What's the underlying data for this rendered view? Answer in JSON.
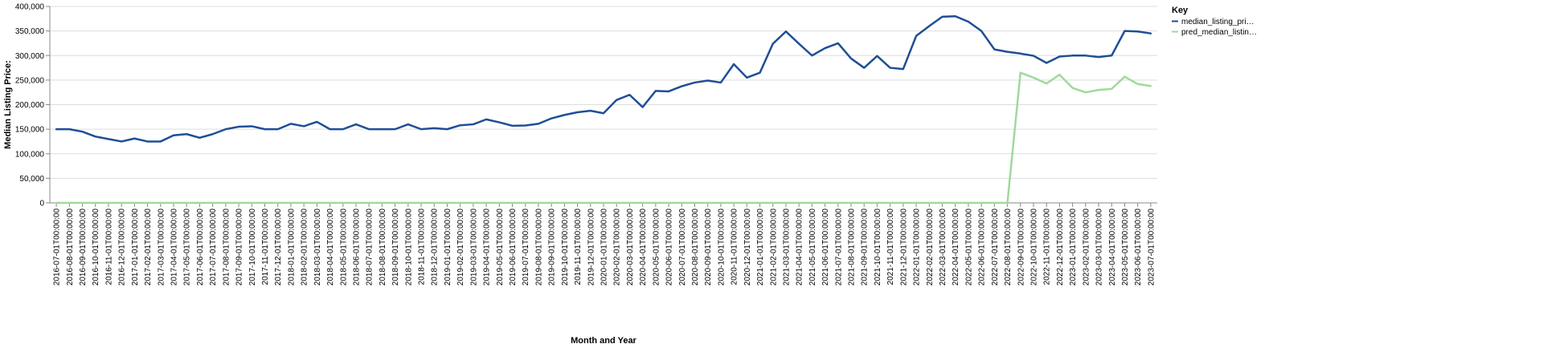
{
  "chart_data": {
    "type": "line",
    "xlabel": "Month and Year",
    "ylabel": "Median Listing Price:",
    "ylim": [
      0,
      400000
    ],
    "y_ticks": [
      0,
      50000,
      100000,
      150000,
      200000,
      250000,
      300000,
      350000,
      400000
    ],
    "y_tick_labels": [
      "0",
      "50,000",
      "100,000",
      "150,000",
      "200,000",
      "250,000",
      "300,000",
      "350,000",
      "400,000"
    ],
    "grid": true,
    "legend": {
      "title": "Key",
      "placement": "right",
      "entries": [
        "median_listing_pri…",
        "pred_median_listin…"
      ]
    },
    "categories": [
      "2016-07-01T00:00:00",
      "2016-08-01T00:00:00",
      "2016-09-01T00:00:00",
      "2016-10-01T00:00:00",
      "2016-11-01T00:00:00",
      "2016-12-01T00:00:00",
      "2017-01-01T00:00:00",
      "2017-02-01T00:00:00",
      "2017-03-01T00:00:00",
      "2017-04-01T00:00:00",
      "2017-05-01T00:00:00",
      "2017-06-01T00:00:00",
      "2017-07-01T00:00:00",
      "2017-08-01T00:00:00",
      "2017-09-01T00:00:00",
      "2017-10-01T00:00:00",
      "2017-11-01T00:00:00",
      "2017-12-01T00:00:00",
      "2018-01-01T00:00:00",
      "2018-02-01T00:00:00",
      "2018-03-01T00:00:00",
      "2018-04-01T00:00:00",
      "2018-05-01T00:00:00",
      "2018-06-01T00:00:00",
      "2018-07-01T00:00:00",
      "2018-08-01T00:00:00",
      "2018-09-01T00:00:00",
      "2018-10-01T00:00:00",
      "2018-11-01T00:00:00",
      "2018-12-01T00:00:00",
      "2019-01-01T00:00:00",
      "2019-02-01T00:00:00",
      "2019-03-01T00:00:00",
      "2019-04-01T00:00:00",
      "2019-05-01T00:00:00",
      "2019-06-01T00:00:00",
      "2019-07-01T00:00:00",
      "2019-08-01T00:00:00",
      "2019-09-01T00:00:00",
      "2019-10-01T00:00:00",
      "2019-11-01T00:00:00",
      "2019-12-01T00:00:00",
      "2020-01-01T00:00:00",
      "2020-02-01T00:00:00",
      "2020-03-01T00:00:00",
      "2020-04-01T00:00:00",
      "2020-05-01T00:00:00",
      "2020-06-01T00:00:00",
      "2020-07-01T00:00:00",
      "2020-08-01T00:00:00",
      "2020-09-01T00:00:00",
      "2020-10-01T00:00:00",
      "2020-11-01T00:00:00",
      "2020-12-01T00:00:00",
      "2021-01-01T00:00:00",
      "2021-02-01T00:00:00",
      "2021-03-01T00:00:00",
      "2021-04-01T00:00:00",
      "2021-05-01T00:00:00",
      "2021-06-01T00:00:00",
      "2021-07-01T00:00:00",
      "2021-08-01T00:00:00",
      "2021-09-01T00:00:00",
      "2021-10-01T00:00:00",
      "2021-11-01T00:00:00",
      "2021-12-01T00:00:00",
      "2022-01-01T00:00:00",
      "2022-02-01T00:00:00",
      "2022-03-01T00:00:00",
      "2022-04-01T00:00:00",
      "2022-05-01T00:00:00",
      "2022-06-01T00:00:00",
      "2022-07-01T00:00:00",
      "2022-08-01T00:00:00",
      "2022-09-01T00:00:00",
      "2022-10-01T00:00:00",
      "2022-11-01T00:00:00",
      "2022-12-01T00:00:00",
      "2023-01-01T00:00:00",
      "2023-02-01T00:00:00",
      "2023-03-01T00:00:00",
      "2023-04-01T00:00:00",
      "2023-05-01T00:00:00",
      "2023-06-01T00:00:00",
      "2023-07-01T00:00:00"
    ],
    "series": [
      {
        "name": "median_listing_pri…",
        "color": "#1f4e96",
        "values": [
          150000,
          150000,
          145000,
          135000,
          130000,
          125000,
          131000,
          125000,
          125000,
          137500,
          140000,
          132500,
          140000,
          150000,
          155000,
          156000,
          150000,
          150000,
          161000,
          156000,
          165000,
          150000,
          150000,
          159900,
          150000,
          150000,
          150000,
          159900,
          150000,
          152000,
          150000,
          158000,
          159900,
          170000,
          164000,
          157000,
          157500,
          161000,
          172000,
          179000,
          184500,
          187500,
          182500,
          209500,
          220000,
          195000,
          228000,
          227000,
          237500,
          245000,
          249000,
          245000,
          282500,
          255000,
          265000,
          324000,
          349000,
          324000,
          300000,
          315000,
          325000,
          294000,
          275000,
          299000,
          275000,
          272500,
          340000,
          360000,
          379000,
          380000,
          369000,
          350000,
          312500,
          307500,
          304000,
          299500,
          284900,
          297900,
          299900,
          299900,
          297000,
          299999,
          350000,
          349000,
          345000
        ]
      },
      {
        "name": "pred_median_listin…",
        "color": "#a1d99b",
        "values": [
          0,
          0,
          0,
          0,
          0,
          0,
          0,
          0,
          0,
          0,
          0,
          0,
          0,
          0,
          0,
          0,
          0,
          0,
          0,
          0,
          0,
          0,
          0,
          0,
          0,
          0,
          0,
          0,
          0,
          0,
          0,
          0,
          0,
          0,
          0,
          0,
          0,
          0,
          0,
          0,
          0,
          0,
          0,
          0,
          0,
          0,
          0,
          0,
          0,
          0,
          0,
          0,
          0,
          0,
          0,
          0,
          0,
          0,
          0,
          0,
          0,
          0,
          0,
          0,
          0,
          0,
          0,
          0,
          0,
          0,
          0,
          0,
          0,
          0,
          265000,
          255000,
          243000,
          261000,
          234000,
          225000,
          230000,
          232000,
          257000,
          242000,
          238000
        ]
      }
    ]
  }
}
